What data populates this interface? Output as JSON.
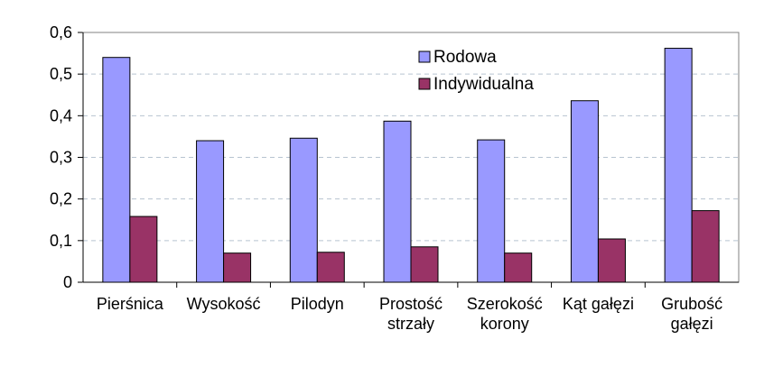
{
  "chart_data": {
    "type": "bar",
    "title": "",
    "xlabel": "",
    "ylabel": "",
    "ylim": [
      0,
      0.6
    ],
    "grid": true,
    "legend_position": "top-right",
    "y_ticks": [
      "0",
      "0,1",
      "0,2",
      "0,3",
      "0,4",
      "0,5",
      "0,6"
    ],
    "categories": [
      [
        "Pierśnica"
      ],
      [
        "Wysokość"
      ],
      [
        "Pilodyn"
      ],
      [
        "Prostość",
        "strzały"
      ],
      [
        "Szerokość",
        "korony"
      ],
      [
        "Kąt gałęzi"
      ],
      [
        "Grubość",
        "gałęzi"
      ]
    ],
    "series": [
      {
        "name": "Rodowa",
        "color": "#9999ff",
        "values": [
          0.54,
          0.34,
          0.346,
          0.387,
          0.342,
          0.436,
          0.562
        ]
      },
      {
        "name": "Indywidualna",
        "color": "#993366",
        "values": [
          0.158,
          0.07,
          0.072,
          0.085,
          0.07,
          0.104,
          0.172
        ]
      }
    ]
  }
}
